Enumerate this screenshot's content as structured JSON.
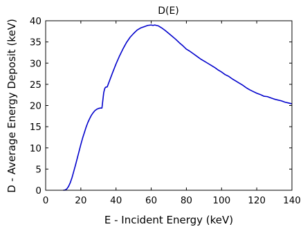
{
  "chart_data": {
    "type": "line",
    "title": "D(E)",
    "xlabel": "E - Incident Energy (keV)",
    "ylabel": "D - Average Energy Deposit (keV)",
    "xlim": [
      0,
      140
    ],
    "ylim": [
      0,
      40
    ],
    "xticks": [
      0,
      20,
      40,
      60,
      80,
      100,
      120,
      140
    ],
    "yticks": [
      0,
      5,
      10,
      15,
      20,
      25,
      30,
      35,
      40
    ],
    "grid": false,
    "line_color": "#0000cc",
    "series": [
      {
        "x": [
          10,
          11,
          12,
          13,
          14,
          15,
          16,
          17,
          18,
          19,
          20,
          21,
          22,
          23,
          24,
          25,
          26,
          27,
          28,
          29,
          30,
          31,
          32,
          33,
          33.5,
          34,
          35,
          36,
          37,
          38,
          40,
          42,
          44,
          46,
          48,
          50,
          52,
          54,
          56,
          58,
          60,
          61,
          62,
          64,
          66,
          68,
          70,
          72,
          74,
          76,
          78,
          80,
          82,
          84,
          86,
          88,
          90,
          92,
          94,
          96,
          98,
          100,
          102,
          104,
          106,
          108,
          110,
          112,
          114,
          116,
          118,
          120,
          122,
          124,
          126,
          128,
          130,
          132,
          134,
          136,
          138,
          140
        ],
        "y": [
          0,
          0.05,
          0.3,
          0.9,
          1.8,
          3.0,
          4.5,
          6.0,
          7.6,
          9.2,
          10.8,
          12.3,
          13.6,
          14.9,
          16.0,
          16.9,
          17.7,
          18.3,
          18.8,
          19.1,
          19.3,
          19.4,
          19.4,
          23.0,
          23.9,
          24.3,
          24.4,
          25.5,
          26.6,
          27.7,
          29.8,
          31.7,
          33.4,
          34.9,
          36.1,
          37.0,
          37.8,
          38.3,
          38.6,
          38.9,
          39.0,
          38.9,
          39.0,
          38.8,
          38.3,
          37.7,
          37.0,
          36.3,
          35.6,
          34.8,
          34.1,
          33.3,
          32.8,
          32.2,
          31.6,
          31.0,
          30.5,
          30.0,
          29.5,
          29.0,
          28.4,
          27.9,
          27.3,
          26.9,
          26.3,
          25.8,
          25.3,
          24.8,
          24.2,
          23.7,
          23.3,
          22.9,
          22.6,
          22.2,
          22.1,
          21.8,
          21.5,
          21.3,
          21.1,
          20.8,
          20.6,
          20.4
        ]
      }
    ]
  }
}
